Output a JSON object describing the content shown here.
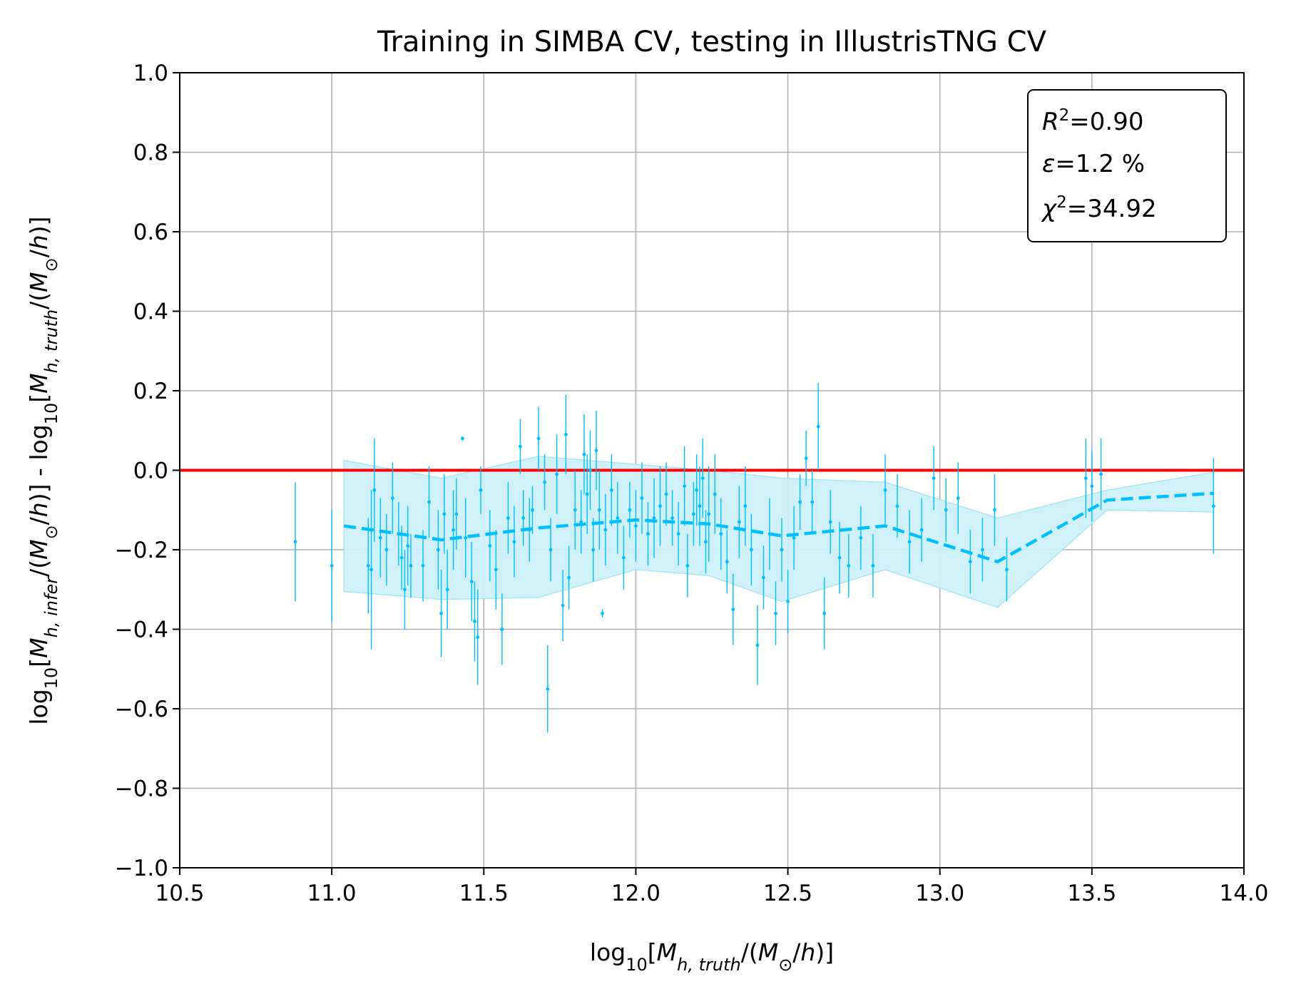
{
  "chart_data": {
    "type": "scatter",
    "title": "Training in SIMBA CV, testing in IllustrisTNG CV",
    "xlabel": "log10[M_h,truth/(M_⊙/h)]",
    "ylabel": "log10[M_h,infer/(M_⊙/h)] - log10[M_h,truth/(M_⊙/h)]",
    "xlim": [
      10.5,
      14.0
    ],
    "ylim": [
      -1.0,
      1.0
    ],
    "xticks": [
      "10.5",
      "11.0",
      "11.5",
      "12.0",
      "12.5",
      "13.0",
      "13.5",
      "14.0"
    ],
    "yticks": [
      "1.0",
      "0.8",
      "0.6",
      "0.4",
      "0.2",
      "0.0",
      "−0.2",
      "−0.4",
      "−0.6",
      "−0.8",
      "−1.0"
    ],
    "grid": true,
    "stats": {
      "r2": "=0.90",
      "epsilon": "=1.2 %",
      "chi2": "=34.92"
    },
    "colors": {
      "points": "#00bfff",
      "band": "#cdf0fa",
      "reference_line": "#ff0000"
    },
    "reference_line": {
      "y": 0.0
    },
    "mean_line": {
      "x": [
        11.04,
        11.36,
        11.68,
        12.0,
        12.24,
        12.48,
        12.82,
        13.19,
        13.55,
        13.9
      ],
      "y": [
        -0.14,
        -0.175,
        -0.145,
        -0.125,
        -0.135,
        -0.165,
        -0.14,
        -0.23,
        -0.075,
        -0.058
      ]
    },
    "band": {
      "x": [
        11.04,
        11.36,
        11.68,
        12.0,
        12.24,
        12.48,
        12.82,
        13.19,
        13.55,
        13.9
      ],
      "upper": [
        0.025,
        -0.02,
        0.035,
        0.015,
        0.0,
        -0.02,
        -0.03,
        -0.12,
        -0.05,
        -0.005
      ],
      "lower": [
        -0.305,
        -0.325,
        -0.32,
        -0.25,
        -0.265,
        -0.33,
        -0.25,
        -0.345,
        -0.1,
        -0.105
      ]
    },
    "points": [
      {
        "x": 10.88,
        "y": -0.18,
        "err": 0.15
      },
      {
        "x": 11.0,
        "y": -0.24,
        "err": 0.14
      },
      {
        "x": 11.12,
        "y": -0.24,
        "err": 0.12
      },
      {
        "x": 11.13,
        "y": -0.25,
        "err": 0.2
      },
      {
        "x": 11.14,
        "y": -0.05,
        "err": 0.13
      },
      {
        "x": 11.16,
        "y": -0.17,
        "err": 0.1
      },
      {
        "x": 11.18,
        "y": -0.2,
        "err": 0.09
      },
      {
        "x": 11.2,
        "y": -0.07,
        "err": 0.09
      },
      {
        "x": 11.22,
        "y": -0.16,
        "err": 0.08
      },
      {
        "x": 11.23,
        "y": -0.22,
        "err": 0.08
      },
      {
        "x": 11.24,
        "y": -0.3,
        "err": 0.1
      },
      {
        "x": 11.25,
        "y": -0.19,
        "err": 0.1
      },
      {
        "x": 11.26,
        "y": -0.24,
        "err": 0.08
      },
      {
        "x": 11.3,
        "y": -0.24,
        "err": 0.09
      },
      {
        "x": 11.32,
        "y": -0.08,
        "err": 0.09
      },
      {
        "x": 11.35,
        "y": -0.2,
        "err": 0.1
      },
      {
        "x": 11.36,
        "y": -0.36,
        "err": 0.11
      },
      {
        "x": 11.37,
        "y": -0.11,
        "err": 0.1
      },
      {
        "x": 11.38,
        "y": -0.3,
        "err": 0.1
      },
      {
        "x": 11.4,
        "y": -0.15,
        "err": 0.1
      },
      {
        "x": 11.41,
        "y": -0.11,
        "err": 0.09
      },
      {
        "x": 11.43,
        "y": 0.08,
        "err": 0.005
      },
      {
        "x": 11.44,
        "y": -0.17,
        "err": 0.1
      },
      {
        "x": 11.46,
        "y": -0.28,
        "err": 0.1
      },
      {
        "x": 11.47,
        "y": -0.38,
        "err": 0.1
      },
      {
        "x": 11.48,
        "y": -0.42,
        "err": 0.12
      },
      {
        "x": 11.49,
        "y": -0.05,
        "err": 0.06
      },
      {
        "x": 11.52,
        "y": -0.19,
        "err": 0.09
      },
      {
        "x": 11.54,
        "y": -0.25,
        "err": 0.1
      },
      {
        "x": 11.56,
        "y": -0.4,
        "err": 0.09
      },
      {
        "x": 11.58,
        "y": -0.12,
        "err": 0.09
      },
      {
        "x": 11.6,
        "y": -0.18,
        "err": 0.09
      },
      {
        "x": 11.62,
        "y": 0.06,
        "err": 0.07
      },
      {
        "x": 11.63,
        "y": -0.12,
        "err": 0.07
      },
      {
        "x": 11.65,
        "y": -0.15,
        "err": 0.08
      },
      {
        "x": 11.66,
        "y": -0.1,
        "err": 0.06
      },
      {
        "x": 11.68,
        "y": 0.08,
        "err": 0.08
      },
      {
        "x": 11.7,
        "y": -0.03,
        "err": 0.07
      },
      {
        "x": 11.71,
        "y": -0.55,
        "err": 0.11
      },
      {
        "x": 11.72,
        "y": -0.2,
        "err": 0.08
      },
      {
        "x": 11.74,
        "y": -0.01,
        "err": 0.1
      },
      {
        "x": 11.76,
        "y": -0.34,
        "err": 0.09
      },
      {
        "x": 11.77,
        "y": 0.09,
        "err": 0.1
      },
      {
        "x": 11.78,
        "y": -0.27,
        "err": 0.08
      },
      {
        "x": 11.8,
        "y": -0.1,
        "err": 0.1
      },
      {
        "x": 11.82,
        "y": -0.13,
        "err": 0.08
      },
      {
        "x": 11.83,
        "y": 0.04,
        "err": 0.1
      },
      {
        "x": 11.84,
        "y": -0.06,
        "err": 0.1
      },
      {
        "x": 11.85,
        "y": 0.0,
        "err": 0.1
      },
      {
        "x": 11.86,
        "y": -0.2,
        "err": 0.08
      },
      {
        "x": 11.87,
        "y": 0.05,
        "err": 0.1
      },
      {
        "x": 11.88,
        "y": -0.1,
        "err": 0.1
      },
      {
        "x": 11.89,
        "y": -0.36,
        "err": 0.01
      },
      {
        "x": 11.9,
        "y": -0.15,
        "err": 0.09
      },
      {
        "x": 11.92,
        "y": -0.05,
        "err": 0.09
      },
      {
        "x": 11.94,
        "y": -0.12,
        "err": 0.09
      },
      {
        "x": 11.96,
        "y": -0.22,
        "err": 0.08
      },
      {
        "x": 11.98,
        "y": -0.1,
        "err": 0.07
      },
      {
        "x": 12.0,
        "y": -0.14,
        "err": 0.09
      },
      {
        "x": 12.02,
        "y": -0.07,
        "err": 0.09
      },
      {
        "x": 12.04,
        "y": -0.16,
        "err": 0.08
      },
      {
        "x": 12.06,
        "y": -0.12,
        "err": 0.1
      },
      {
        "x": 12.08,
        "y": -0.09,
        "err": 0.1
      },
      {
        "x": 12.1,
        "y": -0.06,
        "err": 0.08
      },
      {
        "x": 12.12,
        "y": -0.12,
        "err": 0.07
      },
      {
        "x": 12.14,
        "y": -0.16,
        "err": 0.08
      },
      {
        "x": 12.16,
        "y": -0.04,
        "err": 0.1
      },
      {
        "x": 12.17,
        "y": -0.24,
        "err": 0.08
      },
      {
        "x": 12.19,
        "y": -0.11,
        "err": 0.08
      },
      {
        "x": 12.2,
        "y": -0.05,
        "err": 0.09
      },
      {
        "x": 12.21,
        "y": -0.09,
        "err": 0.1
      },
      {
        "x": 12.22,
        "y": -0.02,
        "err": 0.1
      },
      {
        "x": 12.23,
        "y": -0.18,
        "err": 0.08
      },
      {
        "x": 12.24,
        "y": -0.11,
        "err": 0.12
      },
      {
        "x": 12.26,
        "y": -0.06,
        "err": 0.1
      },
      {
        "x": 12.28,
        "y": -0.16,
        "err": 0.09
      },
      {
        "x": 12.3,
        "y": -0.23,
        "err": 0.08
      },
      {
        "x": 12.32,
        "y": -0.35,
        "err": 0.09
      },
      {
        "x": 12.34,
        "y": -0.13,
        "err": 0.09
      },
      {
        "x": 12.36,
        "y": -0.09,
        "err": 0.1
      },
      {
        "x": 12.38,
        "y": -0.2,
        "err": 0.09
      },
      {
        "x": 12.4,
        "y": -0.44,
        "err": 0.1
      },
      {
        "x": 12.42,
        "y": -0.27,
        "err": 0.08
      },
      {
        "x": 12.44,
        "y": -0.16,
        "err": 0.09
      },
      {
        "x": 12.46,
        "y": -0.36,
        "err": 0.08
      },
      {
        "x": 12.48,
        "y": -0.2,
        "err": 0.08
      },
      {
        "x": 12.5,
        "y": -0.33,
        "err": 0.08
      },
      {
        "x": 12.52,
        "y": -0.17,
        "err": 0.08
      },
      {
        "x": 12.54,
        "y": -0.08,
        "err": 0.07
      },
      {
        "x": 12.56,
        "y": 0.03,
        "err": 0.07
      },
      {
        "x": 12.58,
        "y": -0.08,
        "err": 0.08
      },
      {
        "x": 12.6,
        "y": 0.11,
        "err": 0.11
      },
      {
        "x": 12.62,
        "y": -0.36,
        "err": 0.09
      },
      {
        "x": 12.64,
        "y": -0.13,
        "err": 0.08
      },
      {
        "x": 12.67,
        "y": -0.22,
        "err": 0.09
      },
      {
        "x": 12.7,
        "y": -0.24,
        "err": 0.08
      },
      {
        "x": 12.74,
        "y": -0.17,
        "err": 0.08
      },
      {
        "x": 12.78,
        "y": -0.24,
        "err": 0.08
      },
      {
        "x": 12.82,
        "y": -0.05,
        "err": 0.09
      },
      {
        "x": 12.86,
        "y": -0.09,
        "err": 0.08
      },
      {
        "x": 12.9,
        "y": -0.18,
        "err": 0.08
      },
      {
        "x": 12.94,
        "y": -0.15,
        "err": 0.08
      },
      {
        "x": 12.98,
        "y": -0.02,
        "err": 0.08
      },
      {
        "x": 13.02,
        "y": -0.1,
        "err": 0.08
      },
      {
        "x": 13.06,
        "y": -0.07,
        "err": 0.09
      },
      {
        "x": 13.1,
        "y": -0.23,
        "err": 0.08
      },
      {
        "x": 13.14,
        "y": -0.2,
        "err": 0.08
      },
      {
        "x": 13.18,
        "y": -0.1,
        "err": 0.09
      },
      {
        "x": 13.22,
        "y": -0.25,
        "err": 0.08
      },
      {
        "x": 13.48,
        "y": -0.02,
        "err": 0.1
      },
      {
        "x": 13.5,
        "y": -0.04,
        "err": 0.09
      },
      {
        "x": 13.53,
        "y": -0.01,
        "err": 0.09
      },
      {
        "x": 13.9,
        "y": -0.09,
        "err": 0.12
      }
    ]
  }
}
